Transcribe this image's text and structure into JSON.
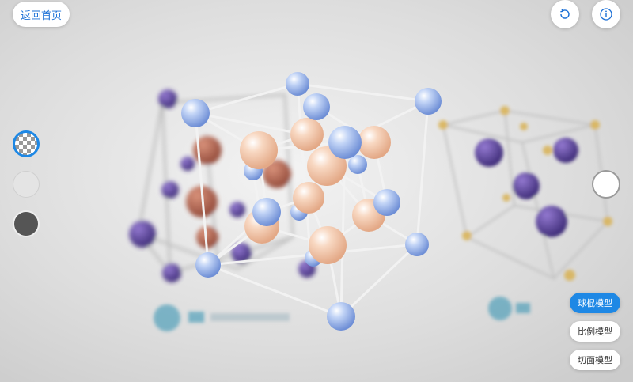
{
  "header": {
    "back_label": "返回首页",
    "reset_icon": "refresh-icon",
    "info_icon": "info-icon"
  },
  "background_swatches": [
    {
      "name": "transparent",
      "selected": true
    },
    {
      "name": "light-gray",
      "color": "#e4e4e4"
    },
    {
      "name": "dark-gray",
      "color": "#555555"
    }
  ],
  "model_modes": [
    {
      "label": "球棍模型",
      "active": true
    },
    {
      "label": "比例模型",
      "active": false
    },
    {
      "label": "切面模型",
      "active": false
    }
  ],
  "colors": {
    "accent": "#1e88e5",
    "anion": "#f5c9ad",
    "cation": "#a9c3f0",
    "background_atom": "#4b2f8f"
  }
}
